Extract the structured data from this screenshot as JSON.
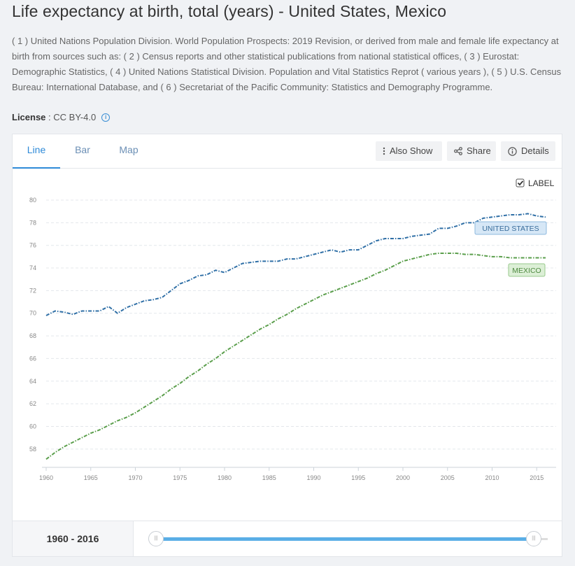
{
  "page": {
    "title": "Life expectancy at birth, total (years) - United States, Mexico",
    "source_note": "( 1 ) United Nations Population Division. World Population Prospects: 2019 Revision, or derived from male and female life expectancy at birth from sources such as: ( 2 ) Census reports and other statistical publications from national statistical offices, ( 3 ) Eurostat: Demographic Statistics, ( 4 ) United Nations Statistical Division. Population and Vital Statistics Reprot ( various years ), ( 5 ) U.S. Census Bureau: International Database, and ( 6 ) Secretariat of the Pacific Community: Statistics and Demography Programme.",
    "license_label": "License",
    "license_sep": " : ",
    "license_value": "CC BY-4.0",
    "info_glyph": "i"
  },
  "tabs": [
    {
      "label": "Line",
      "active": true
    },
    {
      "label": "Bar",
      "active": false
    },
    {
      "label": "Map",
      "active": false
    }
  ],
  "toolbar": {
    "also_show": "Also Show",
    "share": "Share",
    "details": "Details"
  },
  "label_toggle": {
    "text": "LABEL",
    "checked": true
  },
  "range": {
    "label": "1960 - 2016",
    "start": 1960,
    "end": 2016
  },
  "colors": {
    "us_line": "#2f6fa6",
    "mx_line": "#5a9e4b",
    "us_label_bg": "#d6e7f6",
    "us_label_border": "#8db8de",
    "us_label_text": "#3a6e9c",
    "mx_label_bg": "#dcefd6",
    "mx_label_border": "#99c98c",
    "mx_label_text": "#4e8a40",
    "slider": "#5aaee6"
  },
  "chart_data": {
    "type": "line",
    "title": "Life expectancy at birth, total (years)",
    "xlabel": "",
    "ylabel": "",
    "xlim": [
      1960,
      2016
    ],
    "ylim": [
      57,
      80
    ],
    "x_ticks": [
      1960,
      1965,
      1970,
      1975,
      1980,
      1985,
      1990,
      1995,
      2000,
      2005,
      2010,
      2015
    ],
    "y_ticks": [
      58,
      60,
      62,
      64,
      66,
      68,
      70,
      72,
      74,
      76,
      78,
      80
    ],
    "grid": true,
    "x": [
      1960,
      1961,
      1962,
      1963,
      1964,
      1965,
      1966,
      1967,
      1968,
      1969,
      1970,
      1971,
      1972,
      1973,
      1974,
      1975,
      1976,
      1977,
      1978,
      1979,
      1980,
      1981,
      1982,
      1983,
      1984,
      1985,
      1986,
      1987,
      1988,
      1989,
      1990,
      1991,
      1992,
      1993,
      1994,
      1995,
      1996,
      1997,
      1998,
      1999,
      2000,
      2001,
      2002,
      2003,
      2004,
      2005,
      2006,
      2007,
      2008,
      2009,
      2010,
      2011,
      2012,
      2013,
      2014,
      2015,
      2016
    ],
    "series": [
      {
        "name": "UNITED STATES",
        "values": [
          69.8,
          70.2,
          70.1,
          69.9,
          70.2,
          70.2,
          70.2,
          70.6,
          70.0,
          70.5,
          70.8,
          71.1,
          71.2,
          71.4,
          72.0,
          72.6,
          72.9,
          73.3,
          73.4,
          73.8,
          73.6,
          74.0,
          74.4,
          74.5,
          74.6,
          74.6,
          74.6,
          74.8,
          74.8,
          75.0,
          75.2,
          75.4,
          75.6,
          75.4,
          75.6,
          75.6,
          76.0,
          76.4,
          76.6,
          76.6,
          76.6,
          76.8,
          76.9,
          77.0,
          77.5,
          77.5,
          77.7,
          78.0,
          78.0,
          78.4,
          78.5,
          78.6,
          78.7,
          78.7,
          78.8,
          78.6,
          78.5
        ]
      },
      {
        "name": "MEXICO",
        "values": [
          57.1,
          57.7,
          58.2,
          58.6,
          59.0,
          59.4,
          59.7,
          60.1,
          60.5,
          60.8,
          61.2,
          61.7,
          62.2,
          62.7,
          63.3,
          63.8,
          64.4,
          64.9,
          65.5,
          66.0,
          66.6,
          67.1,
          67.6,
          68.1,
          68.6,
          69.0,
          69.5,
          69.9,
          70.4,
          70.8,
          71.2,
          71.6,
          71.9,
          72.2,
          72.5,
          72.8,
          73.1,
          73.5,
          73.8,
          74.2,
          74.6,
          74.8,
          75.0,
          75.2,
          75.3,
          75.3,
          75.3,
          75.2,
          75.2,
          75.1,
          75.0,
          75.0,
          74.9,
          74.9,
          74.9,
          74.9,
          74.9
        ]
      }
    ]
  }
}
